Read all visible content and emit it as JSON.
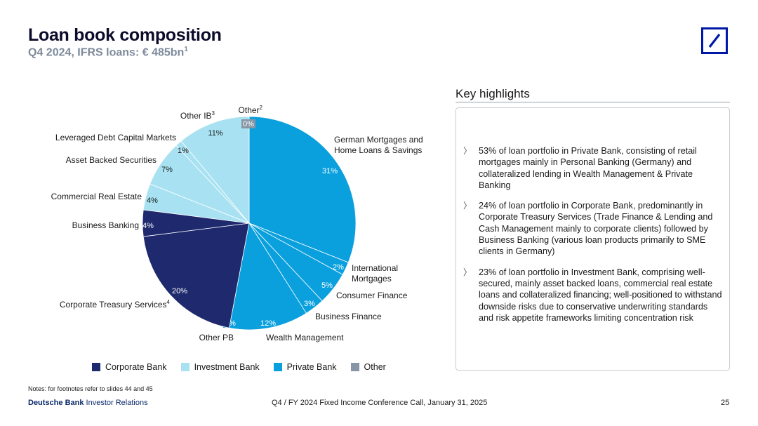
{
  "header": {
    "title": "Loan book composition",
    "subtitle": "Q4 2024, IFRS loans: € 485bn",
    "subtitle_sup": "1"
  },
  "colors": {
    "corporate_bank": "#1f2a6e",
    "investment_bank": "#a8e2f2",
    "private_bank": "#0aa0de",
    "other": "#8796a6",
    "brand": "#0018a8"
  },
  "chart_data": {
    "type": "pie",
    "title": "",
    "slices": [
      {
        "label": "German Mortgages and Home Loans & Savings",
        "value": 31,
        "value_label": "31%",
        "group": "Private Bank"
      },
      {
        "label": "International Mortgages",
        "value": 2,
        "value_label": "2%",
        "group": "Private Bank"
      },
      {
        "label": "Consumer Finance",
        "value": 5,
        "value_label": "5%",
        "group": "Private Bank"
      },
      {
        "label": "Business Finance",
        "value": 3,
        "value_label": "3%",
        "group": "Private Bank"
      },
      {
        "label": "Wealth Management",
        "value": 12,
        "value_label": "12%",
        "group": "Private Bank"
      },
      {
        "label": "Other PB",
        "value": 0,
        "value_label": "0%",
        "group": "Private Bank"
      },
      {
        "label": "Corporate Treasury Services",
        "label_sup": "4",
        "value": 20,
        "value_label": "20%",
        "group": "Corporate Bank"
      },
      {
        "label": "Business Banking",
        "value": 4,
        "value_label": "4%",
        "group": "Corporate Bank"
      },
      {
        "label": "Commercial Real Estate",
        "value": 4,
        "value_label": "4%",
        "group": "Investment Bank"
      },
      {
        "label": "Asset Backed Securities",
        "value": 7,
        "value_label": "7%",
        "group": "Investment Bank"
      },
      {
        "label": "Leveraged Debt Capital Markets",
        "value": 1,
        "value_label": "1%",
        "group": "Investment Bank"
      },
      {
        "label": "Other IB",
        "label_sup": "3",
        "value": 11,
        "value_label": "11%",
        "group": "Investment Bank"
      },
      {
        "label": "Other",
        "label_sup": "2",
        "value": 0,
        "value_label": "0%",
        "group": "Other"
      }
    ],
    "legend": [
      {
        "name": "Corporate Bank"
      },
      {
        "name": "Investment Bank"
      },
      {
        "name": "Private Bank"
      },
      {
        "name": "Other"
      }
    ],
    "legend_placement": "bottom"
  },
  "highlights": {
    "title": "Key highlights",
    "items": [
      "53% of loan portfolio in Private Bank, consisting of retail mortgages mainly in Personal Banking (Germany) and collateralized lending in Wealth Management & Private Banking",
      "24% of loan portfolio in Corporate Bank, predominantly in Corporate Treasury Services (Trade Finance & Lending and Cash Management mainly to corporate clients) followed by Business Banking (various loan products primarily to SME clients in Germany)",
      "23% of loan portfolio in Investment Bank, comprising well-secured, mainly asset backed loans, commercial real estate loans and collateralized financing; well-positioned to withstand downside risks due to conservative underwriting standards and risk appetite frameworks limiting concentration risk"
    ]
  },
  "footer": {
    "notes": "Notes: for footnotes refer to slides 44 and 45",
    "brand_bold": "Deutsche Bank",
    "brand_rest": " Investor Relations",
    "center": "Q4 / FY 2024 Fixed Income Conference Call, January 31, 2025",
    "page": "25"
  }
}
